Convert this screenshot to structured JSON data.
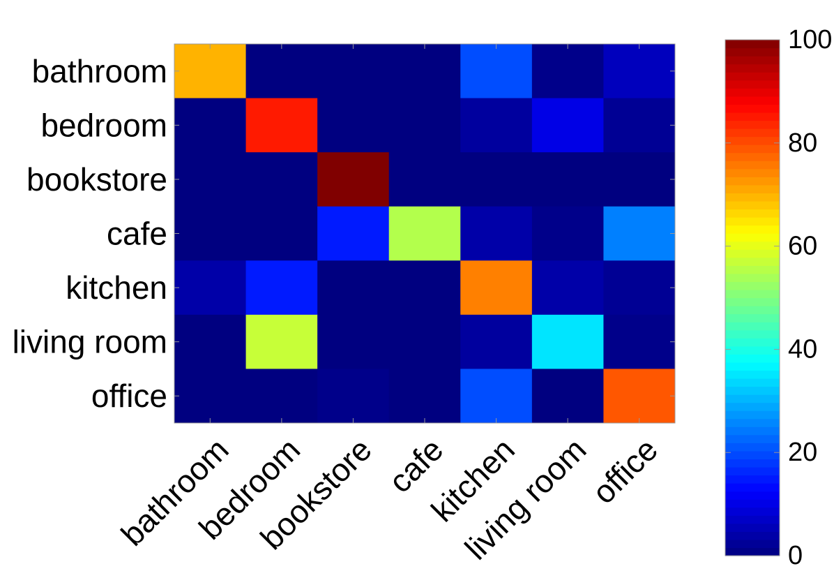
{
  "chart_data": {
    "type": "heatmap",
    "title": "",
    "xlabel": "",
    "ylabel": "",
    "rows": [
      "bathroom",
      "bedroom",
      "bookstore",
      "cafe",
      "kitchen",
      "living room",
      "office"
    ],
    "columns": [
      "bathroom",
      "bedroom",
      "bookstore",
      "cafe",
      "kitchen",
      "living room",
      "office"
    ],
    "values": [
      [
        70,
        0,
        0,
        0,
        20,
        1,
        6
      ],
      [
        0,
        85,
        0,
        0,
        3,
        10,
        2
      ],
      [
        0,
        0,
        100,
        0,
        0,
        0,
        0
      ],
      [
        0,
        0,
        15,
        55,
        4,
        1,
        25
      ],
      [
        4,
        15,
        0,
        0,
        75,
        4,
        2
      ],
      [
        0,
        57,
        0,
        0,
        3,
        35,
        1
      ],
      [
        0,
        0,
        1,
        0,
        20,
        0,
        79
      ]
    ],
    "colorbar": {
      "min": 0,
      "max": 100,
      "ticks": [
        0,
        20,
        40,
        60,
        80,
        100
      ],
      "colormap": "jet"
    },
    "grid": false,
    "legend": "none"
  }
}
